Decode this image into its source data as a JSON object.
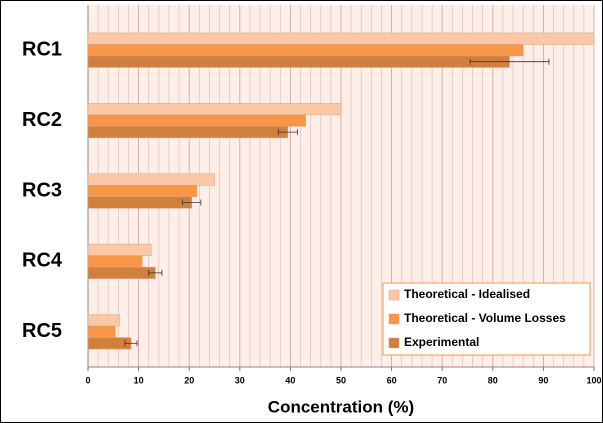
{
  "chart_data": {
    "type": "barh",
    "xlabel": "Concentration (%)",
    "categories": [
      "RC1",
      "RC2",
      "RC3",
      "RC4",
      "RC5"
    ],
    "series": [
      {
        "name": "Theoretical - Idealised",
        "color": "#fac8a6",
        "values": [
          100,
          50,
          25,
          12.5,
          6.25
        ]
      },
      {
        "name": "Theoretical - Volume Losses",
        "color": "#f79646",
        "values": [
          86,
          43,
          21.5,
          10.7,
          5.4
        ]
      },
      {
        "name": "Experimental",
        "color": "#d0803c",
        "values": [
          83.3,
          39.5,
          20.5,
          13.3,
          8.5
        ],
        "errors": [
          7.8,
          1.9,
          1.8,
          1.3,
          1.2
        ]
      }
    ],
    "xlim": [
      0,
      100
    ],
    "xticks": [
      0,
      10,
      20,
      30,
      40,
      50,
      60,
      70,
      80,
      90,
      100
    ],
    "grid": true,
    "minor_grid_step": 2,
    "legend": "lower right"
  }
}
